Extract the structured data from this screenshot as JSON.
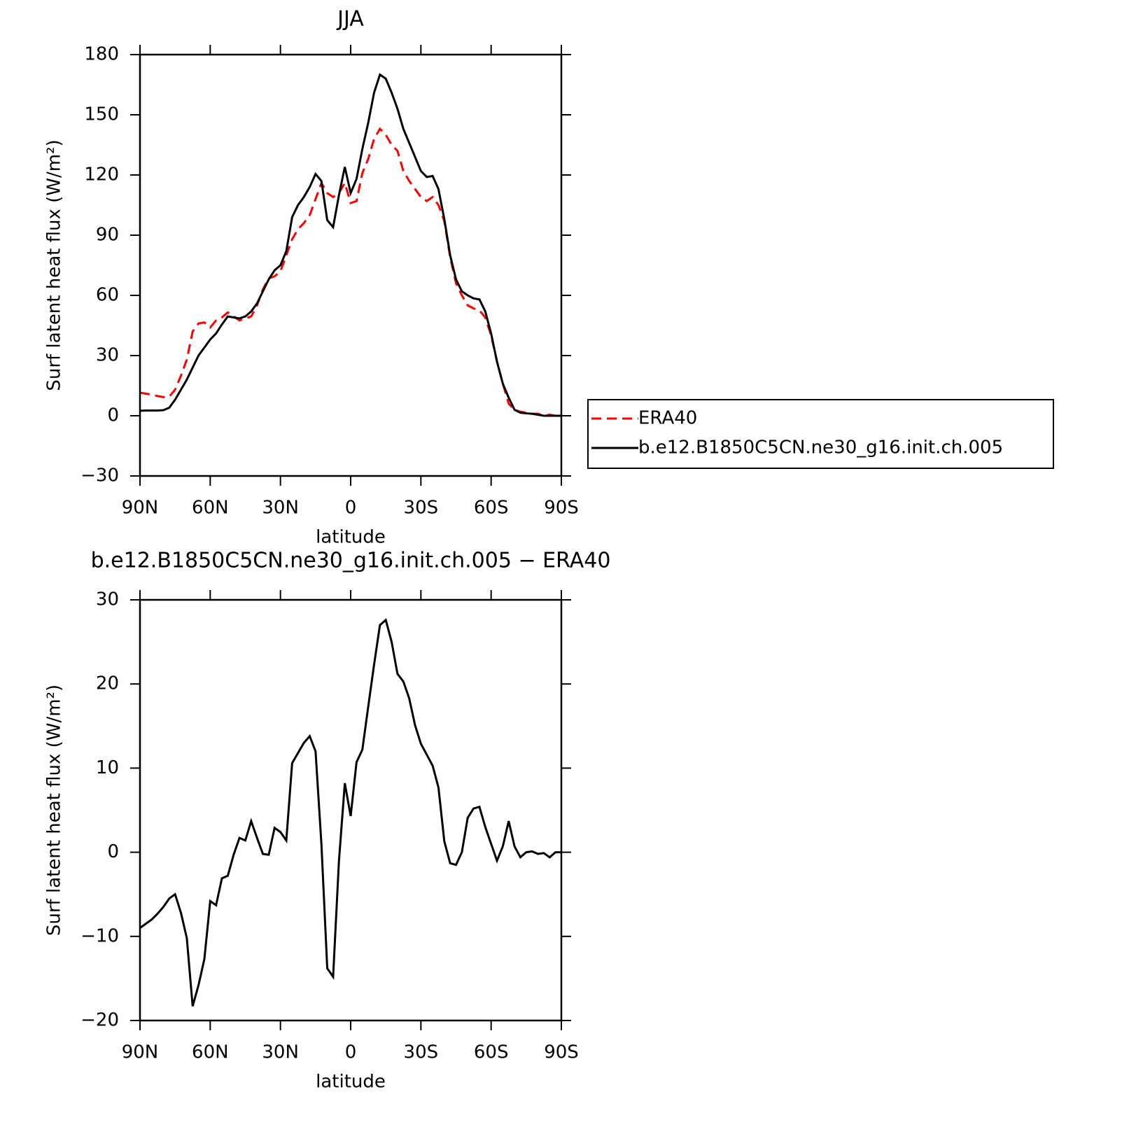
{
  "chart_data": [
    {
      "type": "line",
      "title": "JJA",
      "xlabel": "latitude",
      "ylabel": "Surf latent heat flux (W/m²)",
      "x": [
        90,
        87.5,
        85,
        82.5,
        80,
        77.5,
        75,
        72.5,
        70,
        67.5,
        65,
        62.5,
        60,
        57.5,
        55,
        52.5,
        50,
        47.5,
        45,
        42.5,
        40,
        37.5,
        35,
        32.5,
        30,
        27.5,
        25,
        22.5,
        20,
        17.5,
        15,
        12.5,
        10,
        7.5,
        5,
        2.5,
        0,
        -2.5,
        -5,
        -7.5,
        -10,
        -12.5,
        -15,
        -17.5,
        -20,
        -22.5,
        -25,
        -27.5,
        -30,
        -32.5,
        -35,
        -37.5,
        -40,
        -42.5,
        -45,
        -47.5,
        -50,
        -52.5,
        -55,
        -57.5,
        -60,
        -62.5,
        -65,
        -67.5,
        -70,
        -72.5,
        -75,
        -77.5,
        -80,
        -82.5,
        -85,
        -87.5,
        -90
      ],
      "xlim": [
        90,
        -90
      ],
      "xticks": [
        {
          "value": 90,
          "label": "90N"
        },
        {
          "value": 60,
          "label": "60N"
        },
        {
          "value": 30,
          "label": "30N"
        },
        0,
        {
          "value": -30,
          "label": "30S"
        },
        {
          "value": -60,
          "label": "60S"
        },
        {
          "value": -90,
          "label": "90S"
        }
      ],
      "ylim": [
        -30,
        180
      ],
      "yticks": [
        {
          "value": -30,
          "label": "−30"
        },
        0,
        30,
        60,
        90,
        120,
        150,
        180
      ],
      "legend": "right",
      "series": [
        {
          "name": "ERA40",
          "color": "#ff0000",
          "line_style": "dashed",
          "values": [
            11.5,
            11,
            10.5,
            9.8,
            9.3,
            9.5,
            13,
            20,
            28,
            42,
            46,
            46.5,
            44,
            47.5,
            49,
            51.5,
            49.5,
            47.5,
            48.5,
            49.5,
            55,
            63,
            68.5,
            69.5,
            72,
            80,
            88,
            93,
            96,
            100,
            108,
            116,
            111,
            109,
            111,
            116,
            106,
            107,
            121,
            128,
            138,
            143,
            140,
            135,
            132,
            122,
            117,
            113,
            109,
            107,
            109,
            105,
            97,
            79,
            66,
            60,
            55,
            53.5,
            52.5,
            49,
            40,
            27,
            16,
            6,
            3,
            2,
            1.5,
            1,
            1,
            0,
            0.5,
            0,
            0
          ]
        },
        {
          "name": "b.e12.B1850C5CN.ne30_g16.init.ch.005",
          "color": "#000000",
          "line_style": "solid",
          "values": [
            2.5,
            2.6,
            2.6,
            2.6,
            2.8,
            4,
            8,
            13,
            18,
            24,
            30,
            34,
            38,
            41,
            45.5,
            49.5,
            49,
            48.5,
            49.5,
            52,
            56,
            62,
            68,
            72.5,
            75,
            82,
            99,
            105,
            109,
            114,
            120.5,
            117,
            97.5,
            94,
            110,
            124,
            111,
            118,
            133,
            146,
            161,
            170,
            168,
            161,
            153,
            143,
            136,
            129,
            122,
            119,
            119.5,
            113,
            98,
            80,
            68,
            62,
            60,
            58.5,
            58,
            52,
            41,
            27,
            16,
            9,
            3,
            1.5,
            1.2,
            1,
            0.5,
            0,
            0,
            0,
            0
          ]
        }
      ]
    },
    {
      "type": "line",
      "title": "b.e12.B1850C5CN.ne30_g16.init.ch.005 − ERA40",
      "xlabel": "latitude",
      "ylabel": "Surf latent heat flux (W/m²)",
      "x": [
        90,
        87.5,
        85,
        82.5,
        80,
        77.5,
        75,
        72.5,
        70,
        67.5,
        65,
        62.5,
        60,
        57.5,
        55,
        52.5,
        50,
        47.5,
        45,
        42.5,
        40,
        37.5,
        35,
        32.5,
        30,
        27.5,
        25,
        22.5,
        20,
        17.5,
        15,
        12.5,
        10,
        7.5,
        5,
        2.5,
        0,
        -2.5,
        -5,
        -7.5,
        -10,
        -12.5,
        -15,
        -17.5,
        -20,
        -22.5,
        -25,
        -27.5,
        -30,
        -32.5,
        -35,
        -37.5,
        -40,
        -42.5,
        -45,
        -47.5,
        -50,
        -52.5,
        -55,
        -57.5,
        -60,
        -62.5,
        -65,
        -67.5,
        -70,
        -72.5,
        -75,
        -77.5,
        -80,
        -82.5,
        -85,
        -87.5,
        -90
      ],
      "xlim": [
        90,
        -90
      ],
      "xticks": [
        {
          "value": 90,
          "label": "90N"
        },
        {
          "value": 60,
          "label": "60N"
        },
        {
          "value": 30,
          "label": "30N"
        },
        0,
        {
          "value": -30,
          "label": "30S"
        },
        {
          "value": -60,
          "label": "60S"
        },
        {
          "value": -90,
          "label": "90S"
        }
      ],
      "ylim": [
        -20,
        30
      ],
      "yticks": [
        {
          "value": -20,
          "label": "−20"
        },
        {
          "value": -10,
          "label": "−10"
        },
        0,
        10,
        20,
        30
      ],
      "series": [
        {
          "color": "#000000",
          "line_style": "solid",
          "values": [
            -9,
            -8.5,
            -8,
            -7.3,
            -6.5,
            -5.5,
            -5,
            -7.2,
            -10.2,
            -18.3,
            -15.8,
            -12.7,
            -5.8,
            -6.3,
            -3.1,
            -2.8,
            -0.3,
            1.7,
            1.4,
            3.7,
            1.7,
            -0.2,
            -0.3,
            2.9,
            2.4,
            1.4,
            10.6,
            11.8,
            13,
            13.8,
            12,
            1,
            -13.8,
            -14.8,
            -1,
            8.2,
            4.3,
            10.7,
            12.2,
            17.3,
            22.3,
            27,
            27.6,
            25,
            21.2,
            20.3,
            18.3,
            15.1,
            12.9,
            11.6,
            10.3,
            7.7,
            1.3,
            -1.3,
            -1.5,
            0,
            4.1,
            5.2,
            5.4,
            3,
            1,
            -1,
            0.7,
            3.7,
            0.7,
            -0.6,
            0,
            0.1,
            -0.2,
            -0.1,
            -0.6,
            0,
            0
          ]
        }
      ]
    }
  ]
}
